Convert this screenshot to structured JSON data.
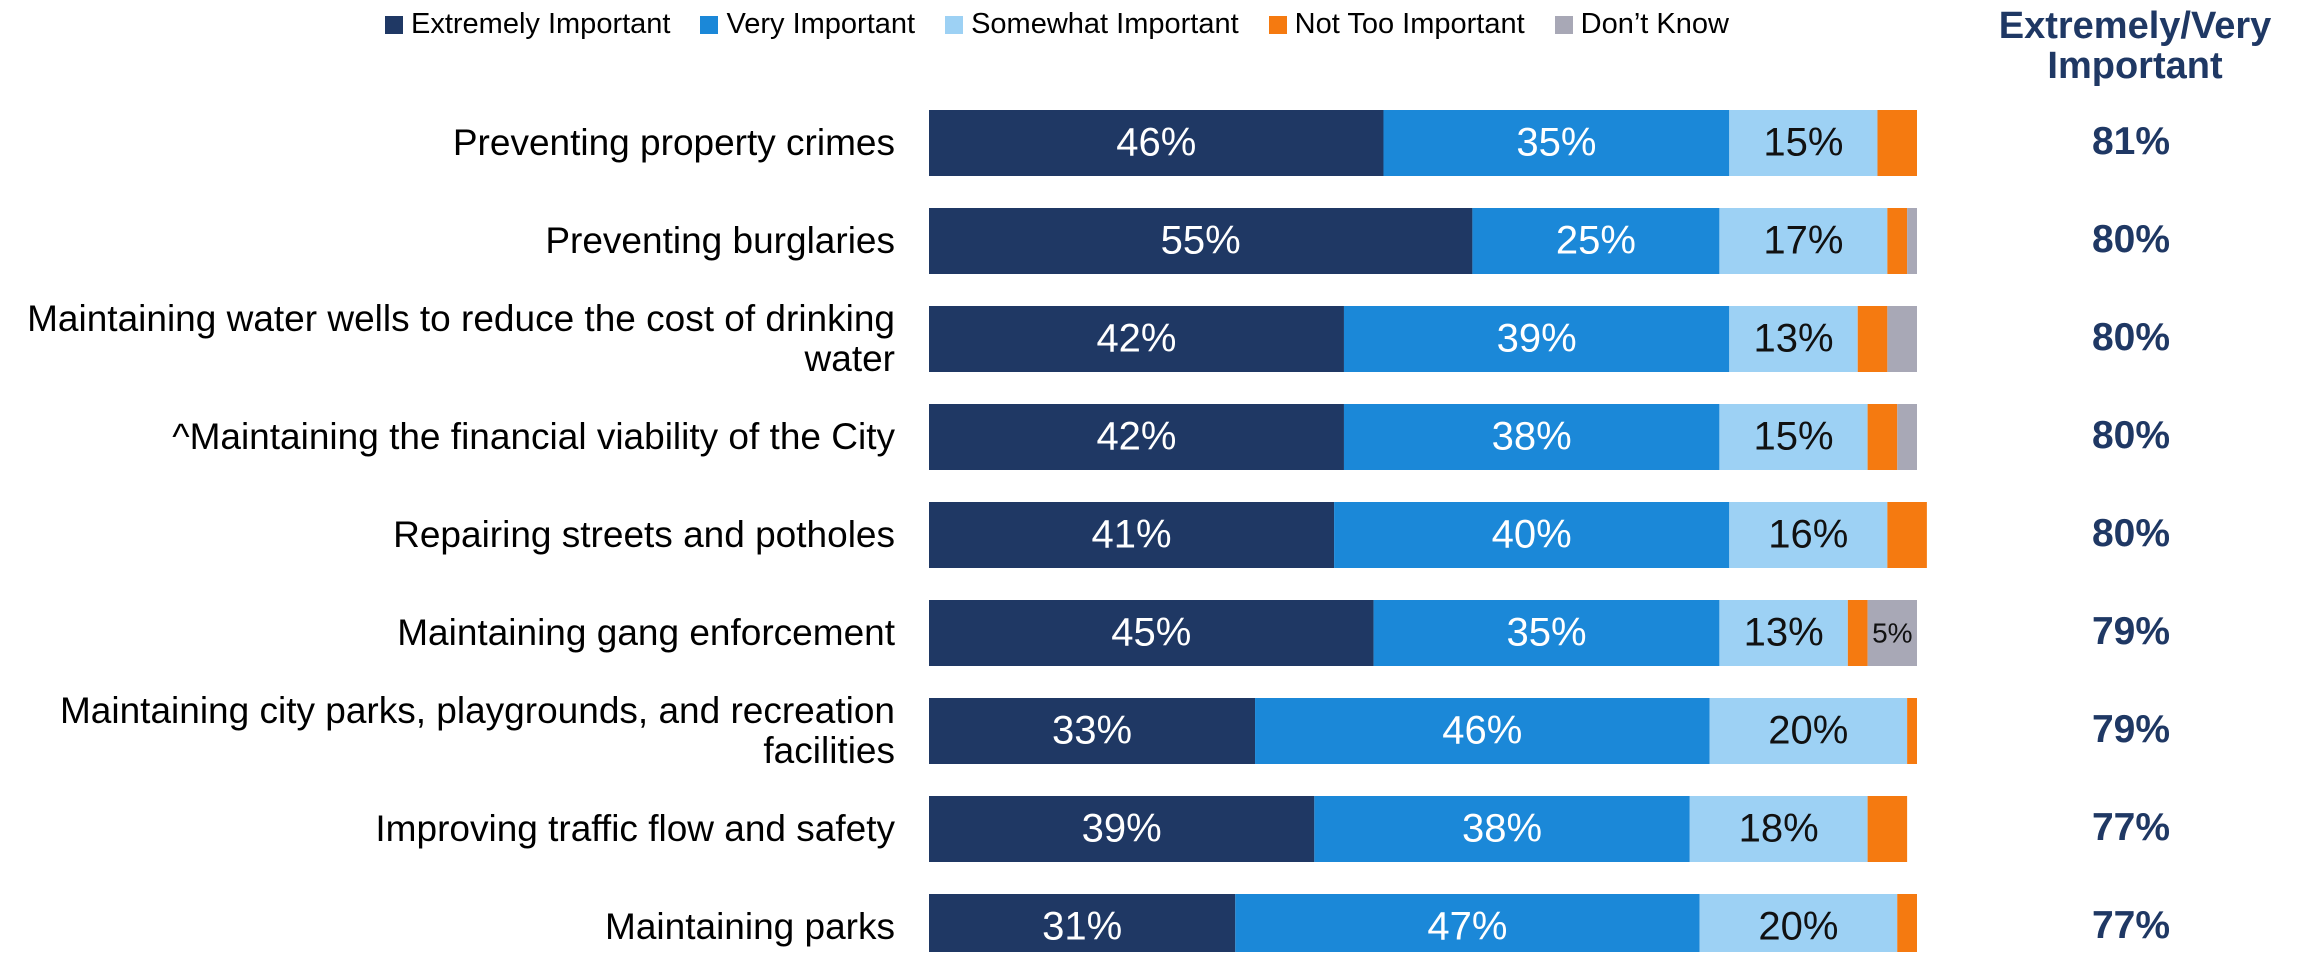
{
  "chart_data": {
    "type": "stacked-barh",
    "categories": [
      "Preventing property crimes",
      "Preventing burglaries",
      "Maintaining water wells to reduce the cost of drinking water",
      "^Maintaining the financial viability of the City",
      "Repairing streets and potholes",
      "Maintaining gang enforcement",
      "Maintaining city parks, playgrounds, and recreation facilities",
      "Improving traffic flow and safety",
      "Maintaining parks"
    ],
    "xlim": [
      0,
      100
    ],
    "series": [
      {
        "name": "Extremely Important",
        "color": "#1f3864",
        "values": [
          46,
          55,
          42,
          42,
          41,
          45,
          33,
          39,
          31
        ],
        "value_labels": [
          "46%",
          "55%",
          "42%",
          "42%",
          "41%",
          "45%",
          "33%",
          "39%",
          "31%"
        ]
      },
      {
        "name": "Very Important",
        "color": "#1b88d8",
        "values": [
          35,
          25,
          39,
          38,
          40,
          35,
          46,
          38,
          47
        ],
        "value_labels": [
          "35%",
          "25%",
          "39%",
          "38%",
          "40%",
          "35%",
          "46%",
          "38%",
          "47%"
        ]
      },
      {
        "name": "Somewhat Important",
        "color": "#9dd1f4",
        "values": [
          15,
          17,
          13,
          15,
          16,
          13,
          20,
          18,
          20
        ],
        "value_labels": [
          "15%",
          "17%",
          "13%",
          "15%",
          "16%",
          "13%",
          "20%",
          "18%",
          "20%"
        ]
      },
      {
        "name": "Not Too Important",
        "color": "#f57a10",
        "values": [
          4,
          2,
          3,
          3,
          4,
          2,
          1,
          4,
          2
        ],
        "value_labels": [
          null,
          null,
          null,
          null,
          null,
          null,
          null,
          null,
          null
        ]
      },
      {
        "name": "Don’t Know",
        "color": "#a8a8b6",
        "values": [
          0,
          1,
          3,
          2,
          0,
          5,
          0,
          0,
          0
        ],
        "value_labels": [
          null,
          null,
          null,
          null,
          null,
          "5%",
          null,
          null,
          null
        ]
      }
    ],
    "totals": {
      "title": "Extremely/Very Important",
      "values": [
        81,
        80,
        80,
        80,
        80,
        79,
        79,
        77,
        77
      ],
      "value_labels": [
        "81%",
        "80%",
        "80%",
        "80%",
        "80%",
        "79%",
        "79%",
        "77%",
        "77%"
      ]
    }
  }
}
